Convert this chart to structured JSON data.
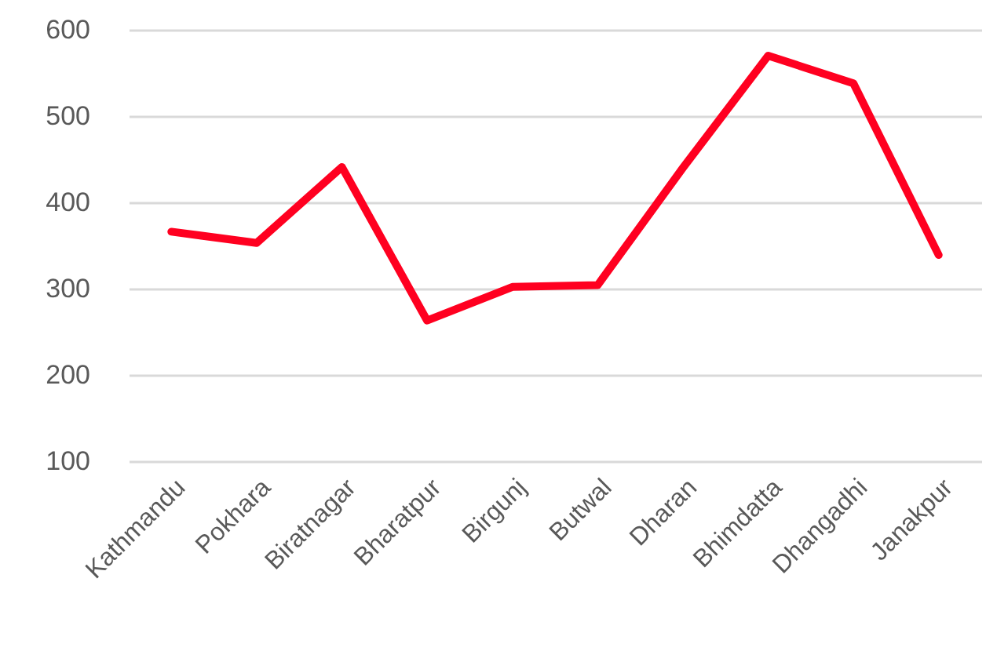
{
  "chart_data": {
    "type": "line",
    "categories": [
      "Kathmandu",
      "Pokhara",
      "Biratnagar",
      "Bharatpur",
      "Birgunj",
      "Butwal",
      "Dharan",
      "Bhimdatta",
      "Dhangadhi",
      "Janakpur"
    ],
    "series": [
      {
        "color": "#ff0020",
        "values": [
          366,
          353,
          441,
          263,
          302,
          304,
          440,
          570,
          538,
          339
        ]
      }
    ],
    "ylim": [
      100,
      600
    ],
    "yticks": [
      100,
      200,
      300,
      400,
      500,
      600
    ],
    "grid": "y"
  }
}
